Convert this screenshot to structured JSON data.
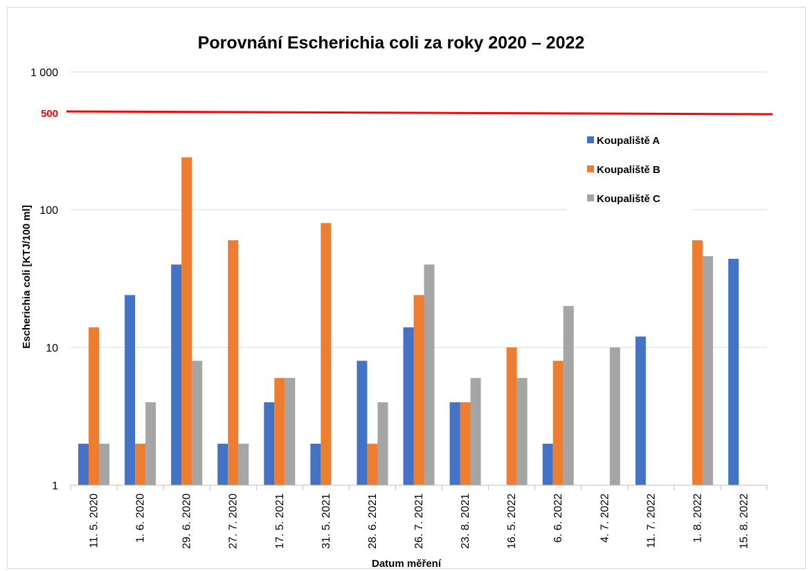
{
  "chart_data": {
    "type": "bar",
    "title": "Porovnání Escherichia coli za roky 2020 – 2022",
    "xlabel": "Datum měření",
    "ylabel": "Escherichia coli  [KTJ/100 ml]",
    "yscale": "log",
    "ylim": [
      1,
      1000
    ],
    "yticks": [
      1,
      10,
      100,
      1000
    ],
    "ytick_labels": [
      "1",
      "10",
      "100",
      "1 000"
    ],
    "grid": "horizontal",
    "legend_position": "top-right",
    "categories": [
      "11. 5. 2020",
      "1. 6. 2020",
      "29. 6. 2020",
      "27. 7. 2020",
      "17. 5. 2021",
      "31. 5. 2021",
      "28. 6. 2021",
      "26. 7. 2021",
      "23. 8. 2021",
      "16. 5. 2022",
      "6. 6. 2022",
      "4. 7. 2022",
      "11. 7. 2022",
      "1. 8. 2022",
      "15. 8. 2022"
    ],
    "series": [
      {
        "name": "Koupaliště A",
        "color": "#4472c4",
        "values": [
          2,
          24,
          40,
          2,
          4,
          2,
          8,
          14,
          4,
          null,
          2,
          null,
          12,
          null,
          44
        ]
      },
      {
        "name": "Koupaliště B",
        "color": "#ed7d31",
        "values": [
          14,
          2,
          240,
          60,
          6,
          80,
          2,
          24,
          4,
          10,
          8,
          null,
          null,
          60,
          null
        ]
      },
      {
        "name": "Koupaliště C",
        "color": "#a5a5a5",
        "values": [
          2,
          4,
          8,
          2,
          6,
          null,
          4,
          40,
          6,
          6,
          20,
          10,
          null,
          46,
          null
        ]
      }
    ],
    "reference_line": {
      "label": "500",
      "value": 500,
      "color": "#ff0000"
    }
  }
}
